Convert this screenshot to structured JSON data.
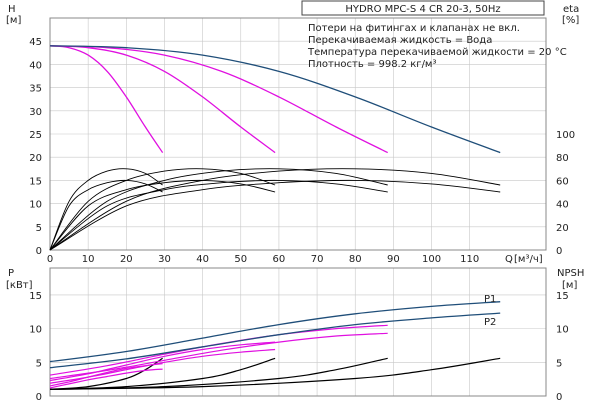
{
  "chart_data": {
    "type": "line",
    "title": "HYDRO MPC-S 4 CR 20-3, 50Hz",
    "notes": [
      "Потери на фитингах и клапанах не вкл.",
      "Перекачиваемая жидкость = Вода",
      "Температура перекачиваемой жидкости = 20 °C",
      "Плотность = 998.2 кг/м³"
    ],
    "colors": {
      "qh_1_3": "#e010e0",
      "qh_4": "#1f4e79",
      "p1": "#1f4e79",
      "p2": "#1f4e79",
      "pump_power": "#e010e0",
      "efficiency": "#000000",
      "npsh": "#000000",
      "grid": "#c8c8c8"
    },
    "top_panel": {
      "x_label": "Q",
      "x_unit": "[м³/ч]",
      "x_ticks": [
        "0",
        "10",
        "20",
        "30",
        "40",
        "50",
        "60",
        "70",
        "80",
        "90",
        "100",
        "110"
      ],
      "xlim": [
        0,
        130
      ],
      "y_label": "H",
      "y_unit": "[м]",
      "y_ticks": [
        "0",
        "5",
        "10",
        "15",
        "20",
        "25",
        "30",
        "35",
        "40",
        "45"
      ],
      "ylim": [
        0,
        50
      ],
      "y2_label": "eta",
      "y2_unit": "[%]",
      "y2_ticks": [
        "0",
        "20",
        "40",
        "60",
        "80",
        "100"
      ],
      "y2lim": [
        0,
        200
      ],
      "qh_curves": [
        {
          "pumps": 1,
          "x": [
            0,
            5,
            10,
            15,
            20,
            25,
            29.5
          ],
          "y": [
            44,
            43.6,
            42,
            38.5,
            33,
            26.5,
            21
          ]
        },
        {
          "pumps": 2,
          "x": [
            0,
            10,
            20,
            30,
            40,
            50,
            59
          ],
          "y": [
            44,
            43.6,
            42,
            38.5,
            33,
            26.5,
            21
          ]
        },
        {
          "pumps": 3,
          "x": [
            0,
            15,
            30,
            45,
            60,
            75,
            88.5
          ],
          "y": [
            44,
            43.6,
            42,
            38.5,
            33,
            26.5,
            21
          ]
        },
        {
          "pumps": 4,
          "x": [
            0,
            20,
            40,
            60,
            80,
            100,
            118
          ],
          "y": [
            44,
            43.6,
            42,
            38.5,
            33,
            26.5,
            21
          ]
        }
      ],
      "efficiency_curves": [
        {
          "pumps": 1,
          "x": [
            0,
            5,
            10,
            15,
            20,
            25,
            29.5
          ],
          "y": [
            0,
            38,
            52,
            58,
            60,
            57,
            50
          ]
        },
        {
          "pumps": 2,
          "x": [
            0,
            10,
            20,
            30,
            40,
            50,
            59
          ],
          "y": [
            0,
            38,
            52,
            58,
            60,
            57,
            50
          ]
        },
        {
          "pumps": 3,
          "x": [
            0,
            15,
            30,
            45,
            60,
            75,
            88.5
          ],
          "y": [
            0,
            38,
            52,
            58,
            60,
            57,
            50
          ]
        },
        {
          "pumps": 4,
          "x": [
            0,
            20,
            40,
            60,
            80,
            100,
            118
          ],
          "y": [
            0,
            38,
            52,
            58,
            60,
            57,
            50
          ]
        },
        {
          "pumps": 1,
          "x": [
            0,
            5,
            10,
            15,
            20,
            25,
            29.5
          ],
          "y": [
            0,
            42,
            60,
            68,
            70,
            66,
            56
          ]
        },
        {
          "pumps": 2,
          "x": [
            0,
            10,
            20,
            30,
            40,
            50,
            59
          ],
          "y": [
            0,
            42,
            60,
            68,
            70,
            66,
            56
          ]
        },
        {
          "pumps": 3,
          "x": [
            0,
            15,
            30,
            45,
            60,
            75,
            88.5
          ],
          "y": [
            0,
            42,
            60,
            68,
            70,
            66,
            56
          ]
        },
        {
          "pumps": 4,
          "x": [
            0,
            20,
            40,
            60,
            80,
            100,
            118
          ],
          "y": [
            0,
            42,
            60,
            68,
            70,
            66,
            56
          ]
        }
      ]
    },
    "bottom_panel": {
      "y_label": "P",
      "y_unit": "[кВт]",
      "y_ticks": [
        "0",
        "5",
        "10",
        "15"
      ],
      "ylim": [
        0,
        19
      ],
      "y2_label": "NPSH",
      "y2_unit": "[м]",
      "y2_ticks": [
        "0",
        "5",
        "10",
        "15"
      ],
      "y2lim": [
        0,
        19
      ],
      "power_curves": [
        {
          "name": "P1",
          "x": [
            0,
            20,
            40,
            60,
            80,
            100,
            118
          ],
          "y": [
            5.1,
            6.6,
            8.6,
            10.6,
            12.2,
            13.3,
            14
          ]
        },
        {
          "name": "P2",
          "x": [
            0,
            20,
            40,
            60,
            80,
            100,
            118
          ],
          "y": [
            4.2,
            5.5,
            7.3,
            9.1,
            10.6,
            11.6,
            12.3
          ]
        }
      ],
      "pump_power_curves": [
        {
          "pumps": 4,
          "x": [
            0,
            15,
            30,
            45,
            60,
            75,
            88.5
          ],
          "y": [
            3.1,
            4.5,
            6.2,
            7.8,
            9.1,
            10,
            10.5
          ]
        },
        {
          "pumps": 4,
          "x": [
            0,
            15,
            30,
            45,
            60,
            75,
            88.5
          ],
          "y": [
            2.6,
            3.8,
            5.3,
            6.8,
            8,
            8.9,
            9.3
          ]
        },
        {
          "pumps": 3,
          "x": [
            0,
            10,
            20,
            30,
            40,
            50,
            59
          ],
          "y": [
            2.3,
            3.3,
            4.6,
            5.9,
            6.9,
            7.6,
            8
          ]
        },
        {
          "pumps": 3,
          "x": [
            0,
            10,
            20,
            30,
            40,
            50,
            59
          ],
          "y": [
            1.9,
            2.8,
            3.9,
            5,
            5.9,
            6.5,
            6.9
          ]
        },
        {
          "pumps": 2,
          "x": [
            0,
            5,
            10,
            15,
            20,
            25,
            29.5
          ],
          "y": [
            1.5,
            2.1,
            2.8,
            3.5,
            4.1,
            4.5,
            4.8
          ]
        },
        {
          "pumps": 2,
          "x": [
            0,
            5,
            10,
            15,
            20,
            25,
            29.5
          ],
          "y": [
            1.2,
            1.8,
            2.4,
            2.9,
            3.4,
            3.8,
            4
          ]
        }
      ],
      "npsh_curves": [
        {
          "pumps": 1,
          "x": [
            0,
            10,
            20,
            25,
            29.5
          ],
          "y": [
            1,
            1.4,
            2.6,
            3.9,
            5.6
          ]
        },
        {
          "pumps": 2,
          "x": [
            0,
            20,
            40,
            50,
            59
          ],
          "y": [
            1,
            1.4,
            2.6,
            3.9,
            5.6
          ]
        },
        {
          "pumps": 3,
          "x": [
            0,
            30,
            60,
            75,
            88.5
          ],
          "y": [
            1,
            1.4,
            2.6,
            3.9,
            5.6
          ]
        },
        {
          "pumps": 4,
          "x": [
            0,
            40,
            80,
            100,
            118
          ],
          "y": [
            1,
            1.4,
            2.6,
            3.9,
            5.6
          ]
        }
      ]
    }
  }
}
